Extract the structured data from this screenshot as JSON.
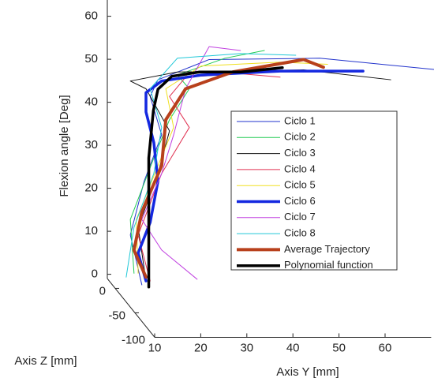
{
  "chart_data": {
    "type": "line3d",
    "x_label": "Axis Y [mm]",
    "y_label": "Axis Z [mm]",
    "z_label": "Flexion angle [Deg]",
    "xlim": [
      10,
      70
    ],
    "xticks": [
      10,
      20,
      30,
      40,
      50,
      60
    ],
    "ylim": [
      -100,
      20
    ],
    "yticks": [
      -100,
      -50,
      0
    ],
    "zlim": [
      -1,
      64
    ],
    "zticks": [
      0,
      10,
      20,
      30,
      40,
      50,
      60
    ],
    "series": [
      {
        "name": "Ciclo 1",
        "color": "#2233cc",
        "width": 1,
        "z": -50,
        "x": [
          11.5,
          9,
          12,
          15.8,
          13.3,
          15,
          26.1,
          50.1,
          75.8
        ],
        "values": [
          5.5,
          17.1,
          29.6,
          40.4,
          49.3,
          53.2,
          57.9,
          58.2,
          55.5
        ]
      },
      {
        "name": "Ciclo 2",
        "color": "#22cc55",
        "width": 1,
        "z": -50,
        "x": [
          9.8,
          9,
          14.1,
          17.5,
          21.8,
          19.2,
          29.5,
          38.1
        ],
        "values": [
          8.2,
          20.7,
          35,
          43.9,
          51.1,
          54.3,
          58.2,
          60
        ]
      },
      {
        "name": "Ciclo 3",
        "color": "#111111",
        "width": 1,
        "z": -50,
        "x": [
          12.4,
          10.7,
          15,
          17.5,
          12.4,
          9,
          19.2,
          46.6,
          65.5
        ],
        "values": [
          6.4,
          18.9,
          31.4,
          41.3,
          51.1,
          52.9,
          55,
          55.5,
          53.2
        ]
      },
      {
        "name": "Ciclo 4",
        "color": "#e03050",
        "width": 1,
        "z": -50,
        "x": [
          13.3,
          10.7,
          15.8,
          21.8,
          17.5,
          21,
          32.9,
          41.5
        ],
        "values": [
          6.4,
          17.1,
          31.4,
          42.1,
          49.3,
          53.8,
          54.6,
          53.8
        ]
      },
      {
        "name": "Ciclo 5",
        "color": "#f0e020",
        "width": 1,
        "z": -50,
        "x": [
          10.7,
          10.3,
          15,
          18.4,
          16.7,
          24.4,
          41.5,
          51.8
        ],
        "values": [
          8.2,
          20.7,
          33.2,
          42.1,
          51.1,
          56.4,
          57.3,
          56.8
        ]
      },
      {
        "name": "Ciclo 6",
        "color": "#1428e0",
        "width": 3.5,
        "z": -50,
        "x": [
          12.4,
          10.7,
          13.3,
          15,
          14.1,
          12.4,
          12.4,
          15.8,
          24.4,
          41.5,
          59.5
        ],
        "values": [
          6.4,
          12.9,
          20,
          29.6,
          38.6,
          45.7,
          50.2,
          52.9,
          54.3,
          55.2,
          55.2
        ]
      },
      {
        "name": "Ciclo 7",
        "color": "#c040e0",
        "width": 1,
        "z": -50,
        "x": [
          23.5,
          15.8,
          11.5,
          15.8,
          18.4,
          21,
          26.1,
          32.9
        ],
        "values": [
          6.8,
          13.6,
          20.7,
          31.4,
          40.4,
          51.1,
          60.9,
          60
        ]
      },
      {
        "name": "Ciclo 8",
        "color": "#20c8d8",
        "width": 1,
        "z": -50,
        "x": [
          8.1,
          9.8,
          14.1,
          15.8,
          13.3,
          19.2,
          32.9,
          44.9
        ],
        "values": [
          7.3,
          18.9,
          31.4,
          42.1,
          51.1,
          58.2,
          59.3,
          58.9
        ]
      },
      {
        "name": "Average Trajectory",
        "color": "#b8401c",
        "width": 4,
        "z": -50,
        "x": [
          12.4,
          9.8,
          11.5,
          15.8,
          16.7,
          21,
          31.2,
          46.6,
          50.9
        ],
        "values": [
          7.3,
          13.6,
          22.5,
          33.2,
          43.9,
          51.1,
          55,
          57.9,
          56.1
        ]
      },
      {
        "name": "Polynomial function",
        "color": "#000000",
        "width": 3.5,
        "z": -50,
        "x": [
          13,
          13,
          13,
          14,
          15,
          18,
          24,
          33,
          42
        ],
        "values": [
          5,
          17,
          35,
          46,
          51,
          54,
          55,
          55,
          56
        ]
      }
    ]
  }
}
